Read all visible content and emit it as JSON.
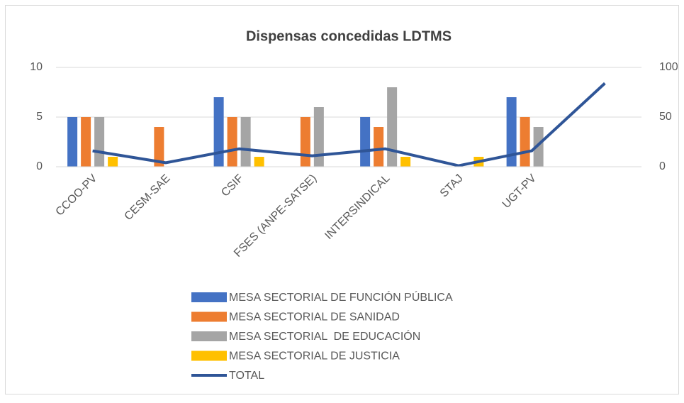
{
  "chart_data": {
    "type": "bar",
    "title": "Dispensas concedidas LDTMS",
    "categories": [
      "CCOO-PV",
      "CESM-SAE",
      "CSIF",
      "FSES (ANPE-SATSE)",
      "INTERSINDICAL",
      "STAJ",
      "UGT-PV",
      null
    ],
    "series": [
      {
        "name": "MESA SECTORIAL DE FUNCIÓN PÚBLICA",
        "color": "#4472c4",
        "values": [
          5,
          0,
          7,
          0,
          5,
          0,
          7,
          null
        ]
      },
      {
        "name": "MESA SECTORIAL DE SANIDAD",
        "color": "#ed7d31",
        "values": [
          5,
          4,
          5,
          5,
          4,
          0,
          5,
          null
        ]
      },
      {
        "name": "MESA SECTORIAL  DE EDUCACIÓN",
        "color": "#a5a5a5",
        "values": [
          5,
          0,
          5,
          6,
          8,
          0,
          4,
          null
        ]
      },
      {
        "name": "MESA SECTORIAL DE JUSTICIA",
        "color": "#ffc000",
        "values": [
          1,
          0,
          1,
          0,
          1,
          1,
          0,
          null
        ]
      },
      {
        "name": "TOTAL",
        "color": "#2f5597",
        "type": "line",
        "axis": "y2",
        "values": [
          16,
          4,
          18,
          11,
          18,
          1,
          16,
          84
        ]
      }
    ],
    "ylim": [
      0,
      10
    ],
    "yticks": [
      0,
      5,
      10
    ],
    "y2lim": [
      0,
      100
    ],
    "y2ticks": [
      0,
      50,
      100
    ],
    "grid": true,
    "legend": "bottom"
  }
}
